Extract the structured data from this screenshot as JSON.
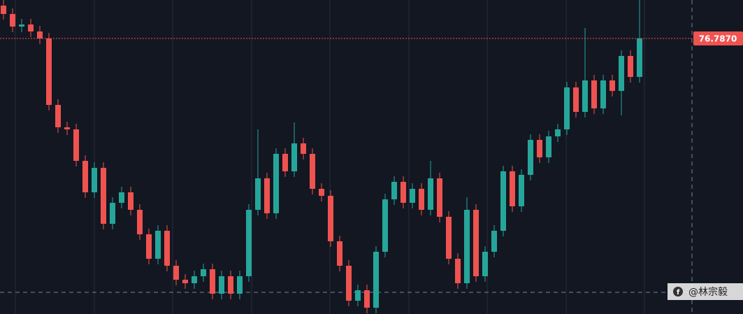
{
  "chart_data": {
    "type": "candlestick",
    "open": [
      77.257,
      77.137,
      76.957,
      76.987,
      76.887,
      76.787,
      75.837,
      75.517,
      75.487,
      75.037,
      74.587,
      74.937,
      74.137,
      74.437,
      74.587,
      74.337,
      73.987,
      73.637,
      74.037,
      73.537,
      73.337,
      73.287,
      73.387,
      73.487,
      73.137,
      73.387,
      73.137,
      73.387,
      74.337,
      74.787,
      74.287,
      75.137,
      74.887,
      75.287,
      75.137,
      74.637,
      74.537,
      73.887,
      73.537,
      73.037,
      73.187,
      72.937,
      73.737,
      74.487,
      74.737,
      74.437,
      74.637,
      74.337,
      74.787,
      74.237,
      73.637,
      73.287,
      74.337,
      73.387,
      73.737,
      74.037,
      74.887,
      74.387,
      74.837,
      75.337,
      75.087,
      75.387,
      75.487,
      76.087,
      75.737,
      76.187,
      75.787,
      76.187,
      76.037,
      76.537,
      76.237
    ],
    "high": [
      77.337,
      77.217,
      77.067,
      77.067,
      76.967,
      76.867,
      75.917,
      75.597,
      75.567,
      75.117,
      75.017,
      75.017,
      74.517,
      74.667,
      74.667,
      74.417,
      74.067,
      74.117,
      74.117,
      73.617,
      73.417,
      73.467,
      73.567,
      73.567,
      73.467,
      73.467,
      73.467,
      74.417,
      75.487,
      74.867,
      75.217,
      75.217,
      75.587,
      75.367,
      75.217,
      74.717,
      74.617,
      73.967,
      73.617,
      73.267,
      73.267,
      73.817,
      74.567,
      74.817,
      74.817,
      74.717,
      74.717,
      75.037,
      74.867,
      74.317,
      73.717,
      74.517,
      74.417,
      73.817,
      74.117,
      74.967,
      74.967,
      74.917,
      75.417,
      75.417,
      75.467,
      75.567,
      76.167,
      76.167,
      76.937,
      76.267,
      76.267,
      76.267,
      76.617,
      76.617,
      77.337
    ],
    "low": [
      77.057,
      76.877,
      76.877,
      76.807,
      76.707,
      75.757,
      75.437,
      75.407,
      74.957,
      74.507,
      74.507,
      74.057,
      74.057,
      74.357,
      74.257,
      73.907,
      73.557,
      73.557,
      73.457,
      73.257,
      73.207,
      73.207,
      73.307,
      73.057,
      73.057,
      73.057,
      73.057,
      73.307,
      74.257,
      74.207,
      74.207,
      74.807,
      74.807,
      75.057,
      74.557,
      74.457,
      73.807,
      73.457,
      72.957,
      72.957,
      72.857,
      72.857,
      73.657,
      74.407,
      74.357,
      74.357,
      74.257,
      74.257,
      74.157,
      73.557,
      73.207,
      73.207,
      73.307,
      73.307,
      73.657,
      73.957,
      74.307,
      74.307,
      74.757,
      75.007,
      75.007,
      75.307,
      75.407,
      75.657,
      75.657,
      75.707,
      75.707,
      75.957,
      75.687,
      76.157,
      76.157
    ],
    "close": [
      77.137,
      76.957,
      76.987,
      76.887,
      76.787,
      75.837,
      75.517,
      75.487,
      75.037,
      74.587,
      74.937,
      74.137,
      74.437,
      74.587,
      74.337,
      73.987,
      73.637,
      74.037,
      73.537,
      73.337,
      73.287,
      73.387,
      73.487,
      73.137,
      73.387,
      73.137,
      73.387,
      74.337,
      74.787,
      74.287,
      75.137,
      74.887,
      75.287,
      75.137,
      74.637,
      74.537,
      73.887,
      73.537,
      73.037,
      73.187,
      72.937,
      73.737,
      74.487,
      74.737,
      74.437,
      74.637,
      74.337,
      74.787,
      74.237,
      73.637,
      73.287,
      74.337,
      73.387,
      73.737,
      74.037,
      74.887,
      74.387,
      74.837,
      75.337,
      75.087,
      75.387,
      75.487,
      76.087,
      75.737,
      76.187,
      75.787,
      76.187,
      76.037,
      76.537,
      76.237,
      76.787
    ],
    "ylim": [
      72.847,
      77.337
    ],
    "up_color": "#26a69a",
    "down_color": "#ef5350",
    "last_price": {
      "value": 76.787,
      "label": "76.7870"
    }
  },
  "watermark": "@林宗毅"
}
